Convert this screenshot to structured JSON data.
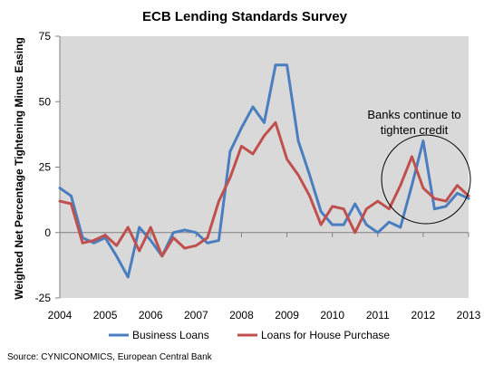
{
  "chart_data": {
    "type": "line",
    "title": "ECB Lending Standards Survey",
    "ylabel": "Weighted Net Percentage Tightening Minus Easing",
    "xlabel": "",
    "ylim": [
      -25,
      75
    ],
    "yticks": [
      "-25",
      "0",
      "25",
      "50",
      "75"
    ],
    "xlim": [
      2004,
      2013
    ],
    "xticks": [
      "2004",
      "2005",
      "2006",
      "2007",
      "2008",
      "2009",
      "2010",
      "2011",
      "2012",
      "2013"
    ],
    "grid": false,
    "legend_position": "bottom",
    "series": [
      {
        "name": "Business Loans",
        "color": "#4a7ebf",
        "x": [
          2004.0,
          2004.25,
          2004.5,
          2004.75,
          2005.0,
          2005.25,
          2005.5,
          2005.75,
          2006.0,
          2006.25,
          2006.5,
          2006.75,
          2007.0,
          2007.25,
          2007.5,
          2007.75,
          2008.0,
          2008.25,
          2008.5,
          2008.75,
          2009.0,
          2009.25,
          2009.5,
          2009.75,
          2010.0,
          2010.25,
          2010.5,
          2010.75,
          2011.0,
          2011.25,
          2011.5,
          2011.75,
          2012.0,
          2012.25,
          2012.5,
          2012.75,
          2013.0
        ],
        "values": [
          17,
          14,
          -2,
          -4,
          -2,
          -9,
          -17,
          2,
          -3,
          -9,
          0,
          1,
          0,
          -4,
          -3,
          31,
          40,
          48,
          42,
          64,
          64,
          35,
          22,
          8,
          3,
          3,
          11,
          3,
          0,
          4,
          2,
          18,
          35,
          9,
          10,
          15,
          13
        ]
      },
      {
        "name": "Loans for House Purchase",
        "color": "#c0504d",
        "x": [
          2004.0,
          2004.25,
          2004.5,
          2004.75,
          2005.0,
          2005.25,
          2005.5,
          2005.75,
          2006.0,
          2006.25,
          2006.5,
          2006.75,
          2007.0,
          2007.25,
          2007.5,
          2007.75,
          2008.0,
          2008.25,
          2008.5,
          2008.75,
          2009.0,
          2009.25,
          2009.5,
          2009.75,
          2010.0,
          2010.25,
          2010.5,
          2010.75,
          2011.0,
          2011.25,
          2011.5,
          2011.75,
          2012.0,
          2012.25,
          2012.5,
          2012.75,
          2013.0
        ],
        "values": [
          12,
          11,
          -4,
          -3,
          -1,
          -5,
          2,
          -7,
          2,
          -9,
          -2,
          -6,
          -5,
          -2,
          12,
          21,
          33,
          30,
          37,
          42,
          28,
          22,
          14,
          3,
          10,
          9,
          0,
          9,
          12,
          9,
          18,
          29,
          17,
          13,
          12,
          18,
          14
        ]
      }
    ],
    "annotation": {
      "lines": [
        "Banks continue to",
        "tighten credit"
      ]
    }
  },
  "source": "Source: CYNICONOMICS, European Central Bank"
}
